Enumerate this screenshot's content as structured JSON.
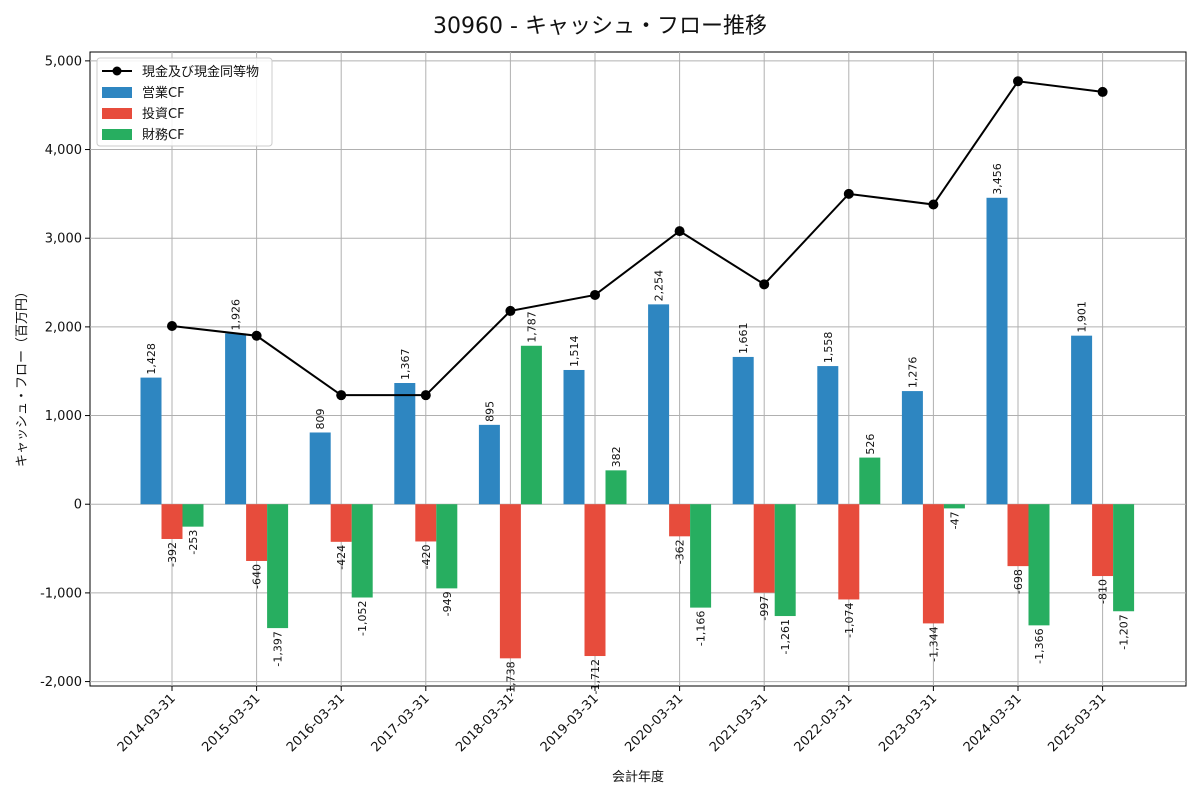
{
  "chart_data": {
    "type": "bar",
    "title": "30960 - キャッシュ・フロー推移",
    "xlabel": "会計年度",
    "ylabel": "キャッシュ・フロー（百万円）",
    "ylim": [
      -2050,
      5100
    ],
    "yticks": [
      -2000,
      -1000,
      0,
      1000,
      2000,
      3000,
      4000,
      5000
    ],
    "ytick_labels": [
      "-2,000",
      "-1,000",
      "0",
      "1,000",
      "2,000",
      "3,000",
      "4,000",
      "5,000"
    ],
    "grid": true,
    "legend_position": "top-left",
    "categories": [
      "2014-03-31",
      "2015-03-31",
      "2016-03-31",
      "2017-03-31",
      "2018-03-31",
      "2019-03-31",
      "2020-03-31",
      "2021-03-31",
      "2022-03-31",
      "2023-03-31",
      "2024-03-31",
      "2025-03-31"
    ],
    "series": [
      {
        "name": "営業CF",
        "kind": "bar",
        "color": "#2E86C1",
        "values": [
          1428,
          1926,
          809,
          1367,
          895,
          1514,
          2254,
          1661,
          1558,
          1276,
          3456,
          1901
        ],
        "labels": [
          "1,428",
          "1,926",
          "809",
          "1,367",
          "895",
          "1,514",
          "2,254",
          "1,661",
          "1,558",
          "1,276",
          "3,456",
          "1,901"
        ]
      },
      {
        "name": "投資CF",
        "kind": "bar",
        "color": "#E74C3C",
        "values": [
          -392,
          -640,
          -424,
          -420,
          -1738,
          -1712,
          -362,
          -997,
          -1074,
          -1344,
          -698,
          -810
        ],
        "labels": [
          "-392",
          "-640",
          "-424",
          "-420",
          "-1,738",
          "-1,712",
          "-362",
          "-997",
          "-1,074",
          "-1,344",
          "-698",
          "-810"
        ]
      },
      {
        "name": "財務CF",
        "kind": "bar",
        "color": "#27AE60",
        "values": [
          -253,
          -1397,
          -1052,
          -949,
          1787,
          382,
          -1166,
          -1261,
          526,
          -47,
          -1366,
          -1207
        ],
        "labels": [
          "-253",
          "-1,397",
          "-1,052",
          "-949",
          "1,787",
          "382",
          "-1,166",
          "-1,261",
          "526",
          "-47",
          "-1,366",
          "-1,207"
        ]
      },
      {
        "name": "現金及び現金同等物",
        "kind": "line",
        "color": "#000000",
        "values": [
          2010,
          1900,
          1230,
          1230,
          2180,
          2360,
          3080,
          2480,
          3500,
          3380,
          4770,
          4650
        ]
      }
    ]
  }
}
